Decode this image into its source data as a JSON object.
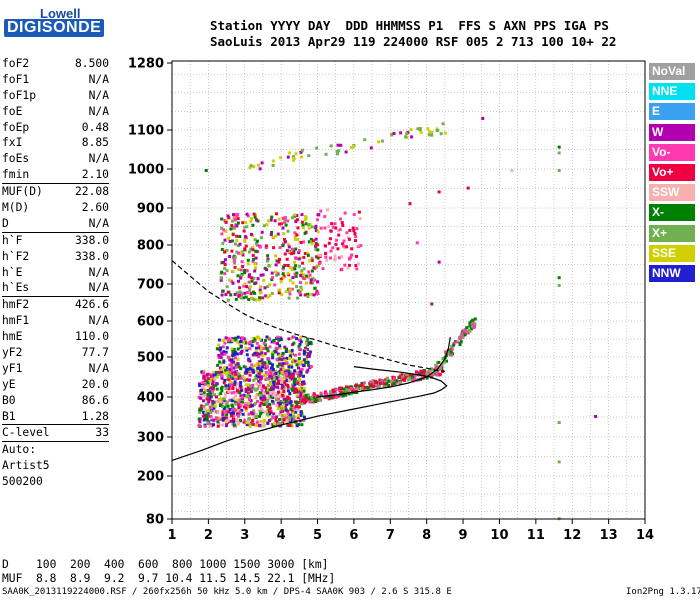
{
  "logo": {
    "line1": "Lowell",
    "line2": "DIGISONDE"
  },
  "header": {
    "line1": "Station YYYY DAY  DDD HHMMSS P1  FFS S AXN PPS IGA PS",
    "line2": "SaoLuis 2013 Apr29 119 224000 RSF 005 2 713 100 10+ 22"
  },
  "params": [
    {
      "k": "foF2",
      "v": "8.500"
    },
    {
      "k": "foF1",
      "v": "N/A"
    },
    {
      "k": "foF1p",
      "v": "N/A"
    },
    {
      "k": "foE",
      "v": "N/A"
    },
    {
      "k": "foEp",
      "v": "0.48"
    },
    {
      "k": "fxI",
      "v": "8.85"
    },
    {
      "k": "foEs",
      "v": "N/A"
    },
    {
      "k": "fmin",
      "v": "2.10"
    },
    {
      "k": "MUF(D)",
      "v": "22.08"
    },
    {
      "k": "M(D)",
      "v": "2.60"
    },
    {
      "k": "D",
      "v": "N/A"
    },
    {
      "k": "h`F",
      "v": "338.0"
    },
    {
      "k": "h`F2",
      "v": "338.0"
    },
    {
      "k": "h`E",
      "v": "N/A"
    },
    {
      "k": "h`Es",
      "v": "N/A"
    },
    {
      "k": "hmF2",
      "v": "426.6"
    },
    {
      "k": "hmF1",
      "v": "N/A"
    },
    {
      "k": "hmE",
      "v": "110.0"
    },
    {
      "k": "yF2",
      "v": "77.7"
    },
    {
      "k": "yF1",
      "v": "N/A"
    },
    {
      "k": "yE",
      "v": "20.0"
    },
    {
      "k": "B0",
      "v": "86.6"
    },
    {
      "k": "B1",
      "v": "1.28"
    },
    {
      "k": "C-level",
      "v": "33"
    },
    {
      "k": "Auto:",
      "v": ""
    },
    {
      "k": "Artist5",
      "v": ""
    },
    {
      "k": "500200",
      "v": ""
    }
  ],
  "legend": [
    {
      "label": "NoVal",
      "color": "#a0a0a0"
    },
    {
      "label": "NNE",
      "color": "#00e0f0"
    },
    {
      "label": "E",
      "color": "#3aa0f0"
    },
    {
      "label": "W",
      "color": "#b000b0"
    },
    {
      "label": "Vo-",
      "color": "#ff3ab0"
    },
    {
      "label": "Vo+",
      "color": "#f00040"
    },
    {
      "label": "SSW",
      "color": "#f7b0b0"
    },
    {
      "label": "X-",
      "color": "#008000"
    },
    {
      "label": "X+",
      "color": "#70b050"
    },
    {
      "label": "SSE",
      "color": "#d0d000"
    },
    {
      "label": "NNW",
      "color": "#2020d0"
    }
  ],
  "muf_table": {
    "d_line": "D    100  200  400  600  800 1000 1500 3000 [km]",
    "muf_line": "MUF  8.8  8.9  9.2  9.7 10.4 11.5 14.5 22.1 [MHz]"
  },
  "footer": {
    "left": "SAA0K_2013119224000.RSF / 260fx256h 50 kHz 5.0 km / DPS-4 SAA0K 903 / 2.6 S 315.8 E",
    "right": "Ion2Png 1.3.17"
  },
  "chart_data": {
    "type": "scatter",
    "x_ticks": [
      1,
      2,
      3,
      4,
      5,
      6,
      7,
      8,
      9,
      10,
      11,
      12,
      13,
      14
    ],
    "y_ticks": [
      80,
      200,
      300,
      400,
      500,
      600,
      700,
      800,
      900,
      1000,
      1100,
      1280
    ],
    "xlim": [
      1,
      14
    ],
    "ylim": [
      80,
      1280
    ],
    "grid": true,
    "profile_curve": [
      [
        1,
        240
      ],
      [
        1.8,
        265
      ],
      [
        2.5,
        290
      ],
      [
        3,
        305
      ],
      [
        4,
        330
      ],
      [
        5,
        352
      ],
      [
        6,
        370
      ],
      [
        7,
        388
      ],
      [
        7.8,
        402
      ],
      [
        8.2,
        410
      ],
      [
        8.4,
        418
      ],
      [
        8.55,
        428
      ],
      [
        8.4,
        440
      ],
      [
        8.1,
        450
      ],
      [
        7.8,
        455
      ],
      [
        7.3,
        462
      ],
      [
        6.5,
        470
      ],
      [
        6,
        476
      ]
    ],
    "extrapolated_curve": [
      [
        1,
        760
      ],
      [
        1.5,
        720
      ],
      [
        2,
        680
      ],
      [
        2.5,
        648
      ],
      [
        3,
        618
      ],
      [
        3.5,
        595
      ],
      [
        4,
        576
      ],
      [
        4.5,
        560
      ],
      [
        5,
        546
      ],
      [
        5.5,
        530
      ],
      [
        6,
        518
      ],
      [
        6.5,
        505
      ],
      [
        7,
        492
      ],
      [
        7.5,
        480
      ],
      [
        8,
        472
      ],
      [
        8.3,
        466
      ],
      [
        8.5,
        464
      ]
    ],
    "trace_curve": [
      [
        5,
        400
      ],
      [
        5.5,
        405
      ],
      [
        6,
        412
      ],
      [
        6.5,
        418
      ],
      [
        7,
        425
      ],
      [
        7.5,
        435
      ],
      [
        8,
        450
      ],
      [
        8.3,
        470
      ],
      [
        8.5,
        495
      ],
      [
        8.6,
        525
      ],
      [
        8.65,
        555
      ]
    ],
    "cluster_regions": [
      {
        "series": "o-mode lower F",
        "x": [
          1.7,
          4.6
        ],
        "y": [
          330,
          470
        ],
        "colors": [
          "Vo+",
          "Vo-",
          "W",
          "X-",
          "X+",
          "SSE",
          "NNW",
          "SSW"
        ]
      },
      {
        "series": "o-mode upper F",
        "x": [
          2.2,
          4.8
        ],
        "y": [
          460,
          560
        ],
        "colors": [
          "SSE",
          "Vo-",
          "W",
          "X-",
          "NNW"
        ]
      },
      {
        "series": "echo trace",
        "x": [
          4.5,
          8.4
        ],
        "y": [
          390,
          480
        ],
        "colors": [
          "X-",
          "Vo-",
          "Vo+",
          "X+"
        ]
      },
      {
        "series": "F2 cusp",
        "x": [
          8.2,
          9.3
        ],
        "y": [
          480,
          610
        ],
        "colors": [
          "Vo-",
          "X-",
          "X+"
        ]
      },
      {
        "series": "multi-hop",
        "x": [
          2.3,
          5.0
        ],
        "y": [
          660,
          890
        ],
        "colors": [
          "Vo+",
          "X-",
          "SSE",
          "W",
          "Vo-",
          "X+"
        ]
      },
      {
        "series": "multi-hop spread",
        "x": [
          5.0,
          6.2
        ],
        "y": [
          740,
          900
        ],
        "colors": [
          "Vo-",
          "SSW",
          "Vo+"
        ]
      },
      {
        "series": "third hop",
        "x": [
          3.0,
          8.6
        ],
        "y": [
          1000,
          1110
        ],
        "colors": [
          "SSE",
          "X+",
          "W"
        ]
      }
    ]
  }
}
